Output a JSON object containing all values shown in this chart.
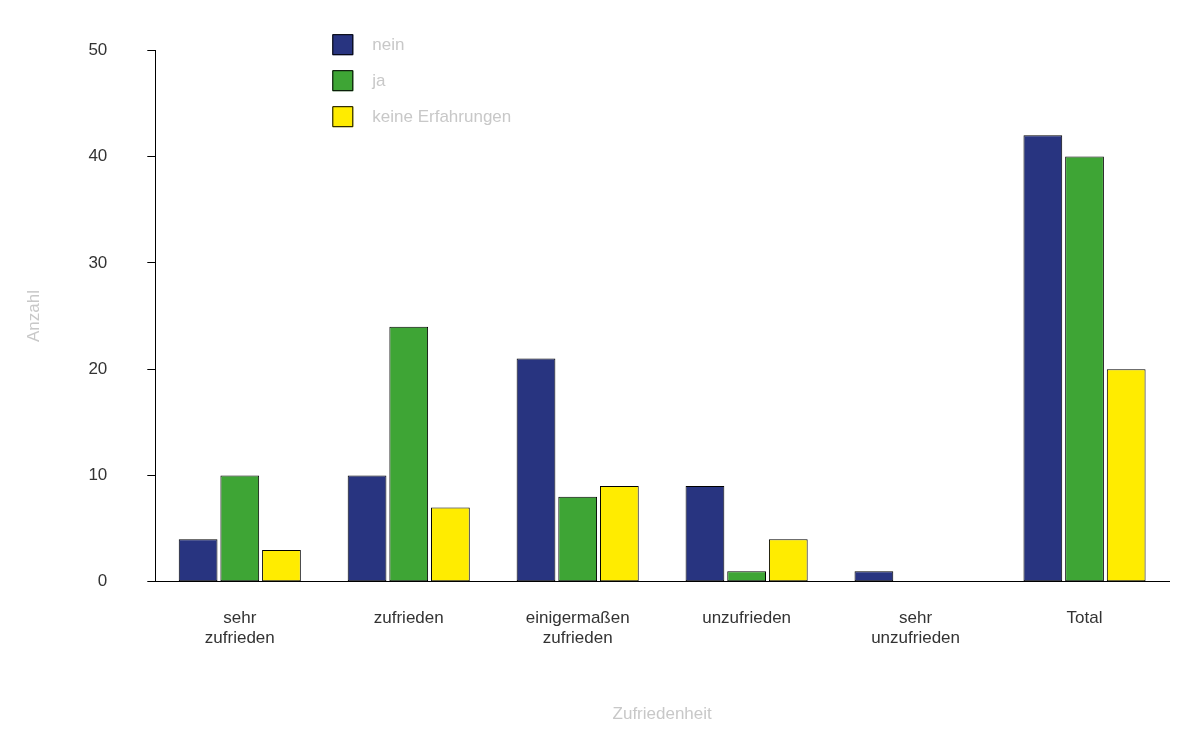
{
  "chart_data": {
    "type": "bar",
    "xlabel": "Zufriedenheit",
    "ylabel": "Anzahl",
    "categories": [
      "sehr zufrieden",
      "zufrieden",
      "einigermaßen zufrieden",
      "unzufrieden",
      "sehr unzufrieden",
      "Total"
    ],
    "series": [
      {
        "name": "nein",
        "color": "#283480",
        "values": [
          4,
          10,
          21,
          9,
          1,
          42
        ]
      },
      {
        "name": "ja",
        "color": "#3ea535",
        "values": [
          10,
          24,
          8,
          1,
          0,
          40
        ]
      },
      {
        "name": "keine Erfahrungen",
        "color": "#ffec00",
        "values": [
          3,
          7,
          9,
          4,
          0,
          20
        ]
      }
    ],
    "ylim": [
      0,
      50
    ],
    "yticks": [
      0,
      10,
      20,
      30,
      40,
      50
    ],
    "grid": false,
    "legend": "top left"
  }
}
